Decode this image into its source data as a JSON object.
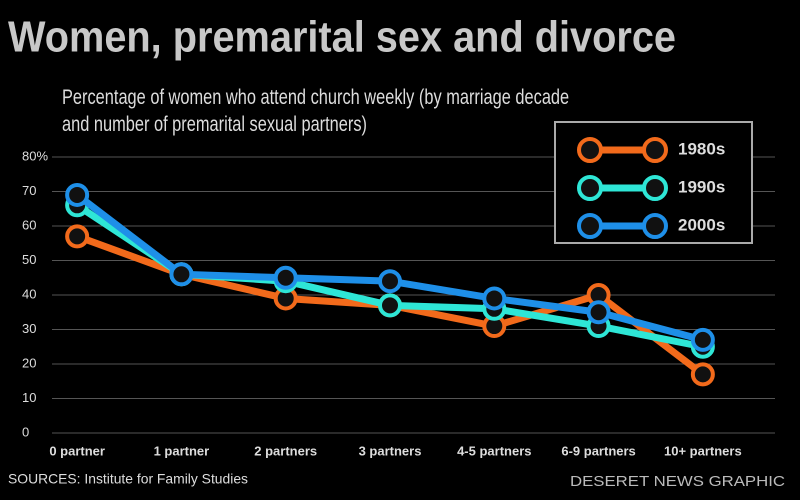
{
  "chart_data": {
    "type": "line",
    "title": "Women, premarital sex and divorce",
    "subtitle": "Percentage of women who attend church weekly (by marriage decade and number of premarital sexual partners)",
    "categories": [
      "0 partner",
      "1 partner",
      "2 partners",
      "3 partners",
      "4-5 partners",
      "6-9 partners",
      "10+ partners"
    ],
    "series": [
      {
        "name": "1980s",
        "color": "#f26a1b",
        "values": [
          57,
          46,
          39,
          37,
          31,
          40,
          17
        ]
      },
      {
        "name": "1990s",
        "color": "#2ee6d6",
        "values": [
          66,
          46,
          44,
          37,
          36,
          31,
          25
        ]
      },
      {
        "name": "2000s",
        "color": "#1e8fe8",
        "values": [
          69,
          46,
          45,
          44,
          39,
          35,
          27
        ]
      }
    ],
    "ylim": [
      0,
      80
    ],
    "yticks": [
      0,
      10,
      20,
      30,
      40,
      50,
      60,
      70,
      {
        "value": 80,
        "label": "80%"
      }
    ],
    "grid": true,
    "legend": "top-right",
    "source": "SOURCES: Institute for Family Studies",
    "credit": "DESERET NEWS GRAPHIC"
  }
}
